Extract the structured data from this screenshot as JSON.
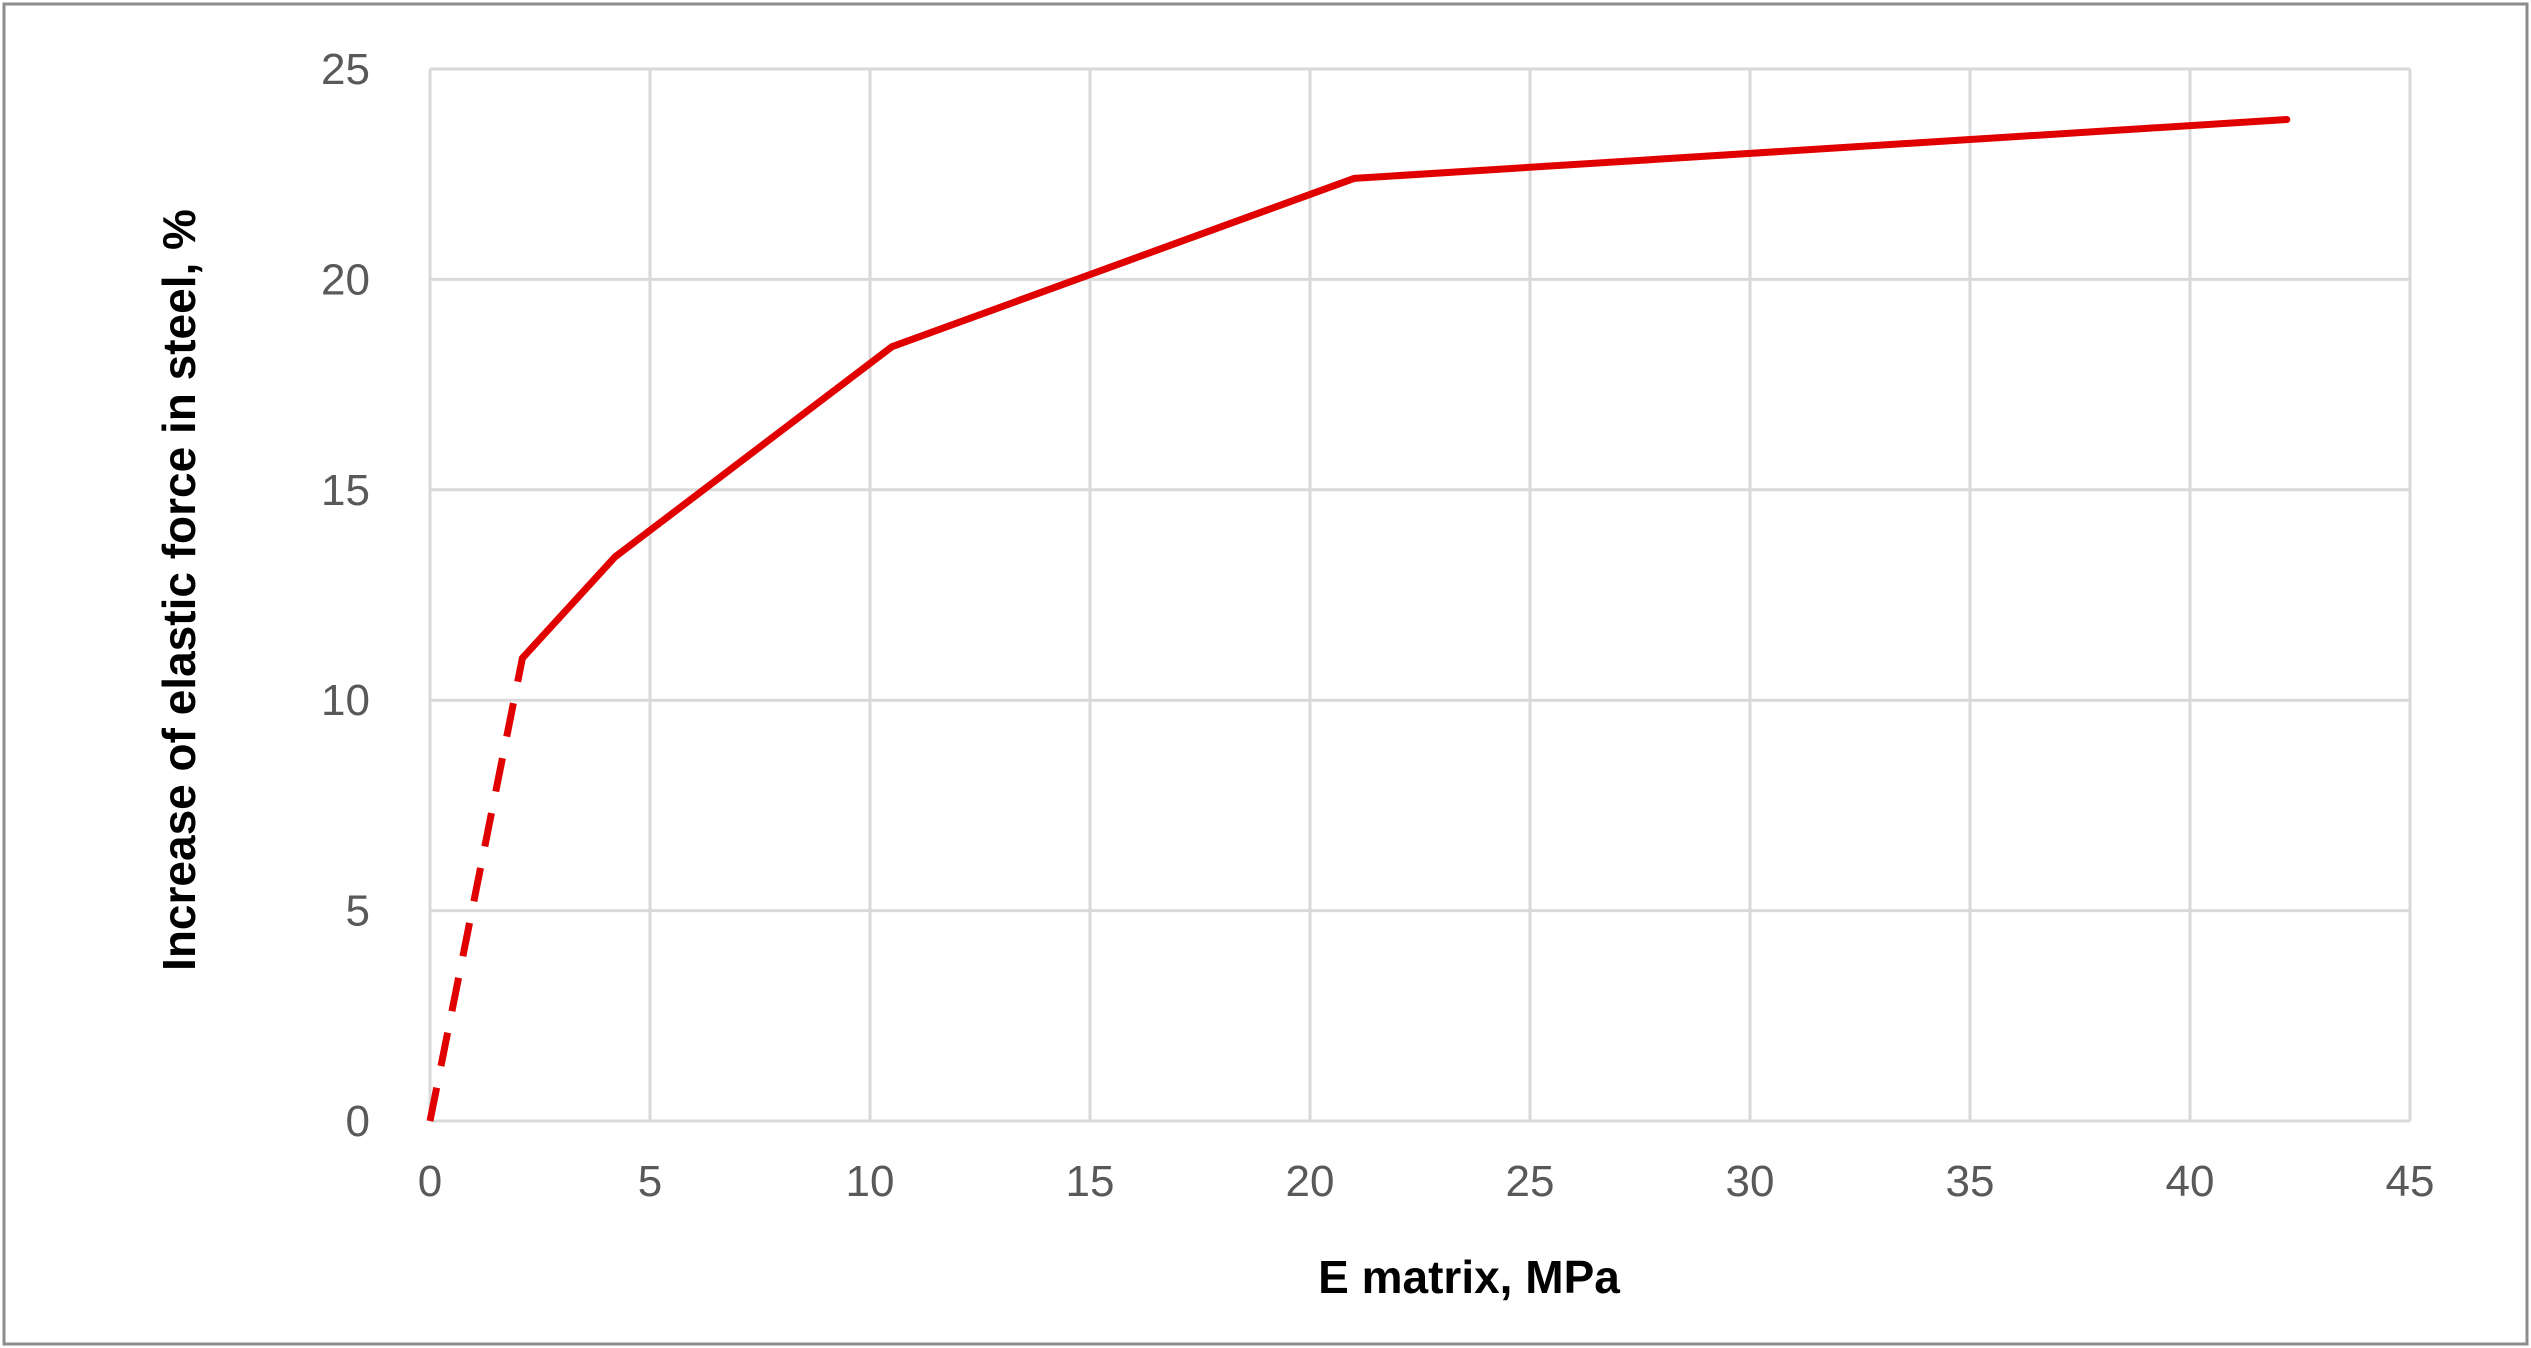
{
  "chart_data": {
    "type": "line",
    "title": "",
    "xlabel": "E matrix, MPa",
    "ylabel": "Increase of elastic force in steel, %",
    "xlim": [
      0,
      45
    ],
    "ylim": [
      0,
      25
    ],
    "x_ticks": [
      0,
      5,
      10,
      15,
      20,
      25,
      30,
      35,
      40,
      45
    ],
    "y_ticks": [
      0,
      5,
      10,
      15,
      20,
      25
    ],
    "grid": true,
    "legend": "none",
    "series": [
      {
        "color": "#e00000",
        "line_style": "dashed",
        "x": [
          0,
          2.1
        ],
        "y": [
          0,
          11.0
        ]
      },
      {
        "color": "#e00000",
        "line_style": "solid",
        "x": [
          2.1,
          4.2,
          10.5,
          21.0,
          42.2
        ],
        "y": [
          11.0,
          13.4,
          18.4,
          22.4,
          23.8
        ]
      }
    ]
  }
}
